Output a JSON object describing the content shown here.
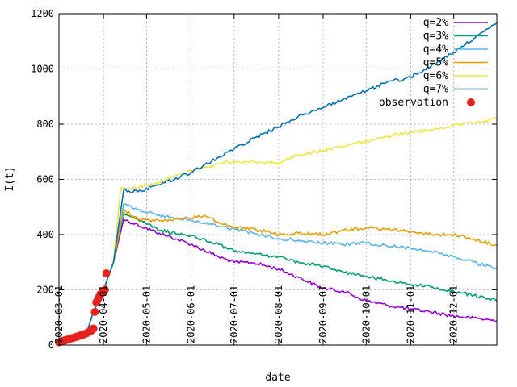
{
  "chart_data": {
    "type": "line",
    "xlabel": "date",
    "ylabel": "I(t)",
    "ylim": [
      0,
      1200
    ],
    "yticks": [
      0,
      200,
      400,
      600,
      800,
      1000,
      1200
    ],
    "xlim": [
      "2020-03-01",
      "2020-12-31"
    ],
    "xticks": [
      "2020-03-01",
      "2020-04-01",
      "2020-05-01",
      "2020-06-01",
      "2020-07-01",
      "2020-08-01",
      "2020-09-01",
      "2020-10-01",
      "2020-11-01",
      "2020-12-01"
    ],
    "xtick_labels": [
      "2020-03-01",
      "2020-04-01",
      "2020-05-01",
      "2020-06-01",
      "2020-07-01",
      "2020-08-01",
      "2020-09-01",
      "2020-10-01",
      "2020-11-01",
      "2020-12-01"
    ],
    "grid": true,
    "legend_position": "top-right",
    "series": [
      {
        "name": "q=2%",
        "color": "#9400d3",
        "x": [
          "2020-03-01",
          "2020-03-20",
          "2020-03-25",
          "2020-04-01",
          "2020-04-08",
          "2020-04-15",
          "2020-04-25",
          "2020-05-10",
          "2020-06-01",
          "2020-06-20",
          "2020-07-01",
          "2020-07-15",
          "2020-08-01",
          "2020-08-15",
          "2020-09-01",
          "2020-09-15",
          "2020-10-01",
          "2020-10-15",
          "2020-11-01",
          "2020-11-15",
          "2020-12-01",
          "2020-12-15",
          "2020-12-31"
        ],
        "values": [
          10,
          40,
          120,
          200,
          300,
          455,
          435,
          405,
          365,
          320,
          300,
          298,
          275,
          245,
          205,
          195,
          160,
          145,
          130,
          120,
          105,
          98,
          88
        ]
      },
      {
        "name": "q=3%",
        "color": "#009e73",
        "x": [
          "2020-03-01",
          "2020-03-20",
          "2020-03-25",
          "2020-04-01",
          "2020-04-08",
          "2020-04-15",
          "2020-04-25",
          "2020-05-10",
          "2020-06-01",
          "2020-06-20",
          "2020-07-01",
          "2020-07-15",
          "2020-08-01",
          "2020-08-15",
          "2020-09-01",
          "2020-09-15",
          "2020-10-01",
          "2020-10-15",
          "2020-11-01",
          "2020-11-15",
          "2020-12-01",
          "2020-12-15",
          "2020-12-31"
        ],
        "values": [
          10,
          40,
          120,
          200,
          300,
          480,
          455,
          415,
          395,
          365,
          340,
          330,
          320,
          300,
          285,
          265,
          250,
          235,
          220,
          210,
          195,
          180,
          160
        ]
      },
      {
        "name": "q=4%",
        "color": "#56b4e9",
        "x": [
          "2020-03-01",
          "2020-03-20",
          "2020-03-25",
          "2020-04-01",
          "2020-04-08",
          "2020-04-15",
          "2020-04-25",
          "2020-05-10",
          "2020-06-01",
          "2020-06-20",
          "2020-07-01",
          "2020-07-15",
          "2020-08-01",
          "2020-08-15",
          "2020-09-01",
          "2020-09-15",
          "2020-10-01",
          "2020-10-15",
          "2020-11-01",
          "2020-11-15",
          "2020-12-01",
          "2020-12-15",
          "2020-12-31"
        ],
        "values": [
          10,
          40,
          120,
          200,
          300,
          510,
          490,
          470,
          450,
          430,
          420,
          405,
          385,
          380,
          370,
          365,
          370,
          360,
          350,
          340,
          320,
          300,
          275
        ]
      },
      {
        "name": "q=5%",
        "color": "#e69f00",
        "x": [
          "2020-03-01",
          "2020-03-20",
          "2020-03-25",
          "2020-04-01",
          "2020-04-08",
          "2020-04-15",
          "2020-04-25",
          "2020-05-10",
          "2020-06-01",
          "2020-06-10",
          "2020-06-20",
          "2020-07-01",
          "2020-07-15",
          "2020-08-01",
          "2020-08-15",
          "2020-09-01",
          "2020-09-15",
          "2020-10-01",
          "2020-10-15",
          "2020-11-01",
          "2020-11-15",
          "2020-12-01",
          "2020-12-15",
          "2020-12-31"
        ],
        "values": [
          10,
          40,
          120,
          200,
          300,
          490,
          455,
          450,
          460,
          470,
          445,
          425,
          420,
          400,
          405,
          400,
          415,
          425,
          420,
          410,
          400,
          400,
          385,
          360
        ]
      },
      {
        "name": "q=6%",
        "color": "#f0e442",
        "x": [
          "2020-03-01",
          "2020-03-20",
          "2020-03-25",
          "2020-04-01",
          "2020-04-08",
          "2020-04-13",
          "2020-04-20",
          "2020-05-10",
          "2020-06-01",
          "2020-06-20",
          "2020-07-01",
          "2020-07-15",
          "2020-08-01",
          "2020-08-15",
          "2020-09-01",
          "2020-09-15",
          "2020-10-01",
          "2020-10-15",
          "2020-11-01",
          "2020-11-15",
          "2020-12-01",
          "2020-12-15",
          "2020-12-31"
        ],
        "values": [
          10,
          40,
          120,
          200,
          300,
          570,
          565,
          590,
          630,
          655,
          665,
          665,
          660,
          690,
          705,
          720,
          740,
          755,
          770,
          780,
          795,
          805,
          820
        ]
      },
      {
        "name": "q=7%",
        "color": "#0072b2",
        "x": [
          "2020-03-01",
          "2020-03-20",
          "2020-03-25",
          "2020-04-01",
          "2020-04-08",
          "2020-04-15",
          "2020-04-25",
          "2020-05-10",
          "2020-06-01",
          "2020-06-20",
          "2020-07-01",
          "2020-07-15",
          "2020-08-01",
          "2020-08-15",
          "2020-09-01",
          "2020-09-15",
          "2020-10-01",
          "2020-10-15",
          "2020-11-01",
          "2020-11-15",
          "2020-12-01",
          "2020-12-15",
          "2020-12-31"
        ],
        "values": [
          10,
          40,
          120,
          200,
          300,
          560,
          555,
          580,
          625,
          680,
          710,
          750,
          790,
          830,
          860,
          890,
          920,
          950,
          970,
          1010,
          1060,
          1110,
          1170
        ]
      }
    ],
    "observation": {
      "name": "observation",
      "color": "#e8231b",
      "x": [
        "2020-03-01",
        "2020-03-02",
        "2020-03-03",
        "2020-03-04",
        "2020-03-05",
        "2020-03-06",
        "2020-03-07",
        "2020-03-08",
        "2020-03-09",
        "2020-03-10",
        "2020-03-11",
        "2020-03-12",
        "2020-03-13",
        "2020-03-14",
        "2020-03-15",
        "2020-03-16",
        "2020-03-17",
        "2020-03-18",
        "2020-03-19",
        "2020-03-20",
        "2020-03-21",
        "2020-03-22",
        "2020-03-23",
        "2020-03-24",
        "2020-03-25",
        "2020-03-26",
        "2020-03-27",
        "2020-03-28",
        "2020-03-29",
        "2020-03-30",
        "2020-03-31",
        "2020-04-01",
        "2020-04-02",
        "2020-04-03"
      ],
      "values": [
        10,
        12,
        14,
        15,
        17,
        18,
        20,
        21,
        23,
        25,
        26,
        28,
        30,
        31,
        33,
        35,
        36,
        38,
        40,
        42,
        45,
        48,
        50,
        55,
        60,
        120,
        155,
        165,
        175,
        185,
        190,
        195,
        200,
        260
      ]
    }
  }
}
